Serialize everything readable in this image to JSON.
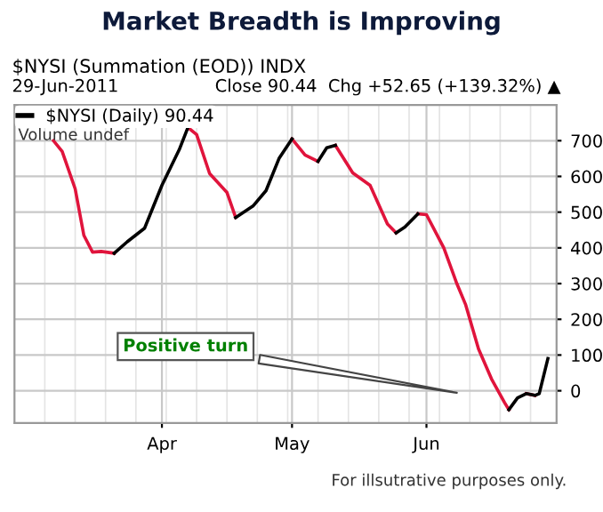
{
  "chart_data": {
    "type": "line",
    "title": "Market Breadth is Improving",
    "subtitle": "$NYSI (Summation (EOD)) INDX",
    "x": [
      "2011-03-07",
      "2011-03-09",
      "2011-03-12",
      "2011-03-14",
      "2011-03-16",
      "2011-03-18",
      "2011-03-21",
      "2011-03-24",
      "2011-03-28",
      "2011-04-01",
      "2011-04-05",
      "2011-04-07",
      "2011-04-09",
      "2011-04-12",
      "2011-04-16",
      "2011-04-18",
      "2011-04-22",
      "2011-04-25",
      "2011-04-28",
      "2011-05-01",
      "2011-05-04",
      "2011-05-07",
      "2011-05-09",
      "2011-05-11",
      "2011-05-15",
      "2011-05-19",
      "2011-05-23",
      "2011-05-25",
      "2011-05-27",
      "2011-05-30",
      "2011-06-01",
      "2011-06-05",
      "2011-06-08",
      "2011-06-10",
      "2011-06-13",
      "2011-06-16",
      "2011-06-19",
      "2011-06-20",
      "2011-06-22",
      "2011-06-24",
      "2011-06-26",
      "2011-06-27",
      "2011-06-29"
    ],
    "series": [
      {
        "color": "#e0143c",
        "values": [
          700,
          670,
          565,
          435,
          388,
          390,
          385,
          null,
          null,
          null,
          null,
          737,
          717,
          608,
          555,
          485,
          null,
          null,
          null,
          705,
          660,
          642,
          null,
          687,
          610,
          575,
          467,
          442,
          null,
          495,
          493,
          400,
          300,
          242,
          117,
          33,
          -33,
          -53,
          null,
          -8,
          -13,
          null,
          null
        ]
      },
      {
        "name": "$NYSI (Daily) 90.44",
        "color": "#000000",
        "values": [
          null,
          null,
          null,
          null,
          null,
          null,
          385,
          417,
          455,
          575,
          675,
          737,
          null,
          null,
          null,
          485,
          517,
          560,
          650,
          705,
          null,
          642,
          680,
          687,
          null,
          null,
          null,
          442,
          458,
          495,
          null,
          null,
          null,
          null,
          null,
          null,
          null,
          -53,
          -20,
          -8,
          -13,
          -8,
          90
        ]
      }
    ],
    "xlim": [
      "2011-02-26",
      "2011-07-01"
    ],
    "xticks": [
      {
        "value": "2011-04-01",
        "label": "Apr"
      },
      {
        "value": "2011-05-01",
        "label": "May"
      },
      {
        "value": "2011-06-01",
        "label": "Jun"
      }
    ],
    "ylim": [
      -90,
      800
    ],
    "yticks": [
      0,
      100,
      200,
      300,
      400,
      500,
      600,
      700
    ],
    "grid": true,
    "legend": "top left",
    "line_style": "solid",
    "marker": "none",
    "annotations": [
      "29-Jun-2011",
      "Close 90.44  Chg +52.65 (+139.32%) ▲",
      "Volume undef",
      "For illsutrative purposes only.",
      "Positive turn"
    ]
  }
}
